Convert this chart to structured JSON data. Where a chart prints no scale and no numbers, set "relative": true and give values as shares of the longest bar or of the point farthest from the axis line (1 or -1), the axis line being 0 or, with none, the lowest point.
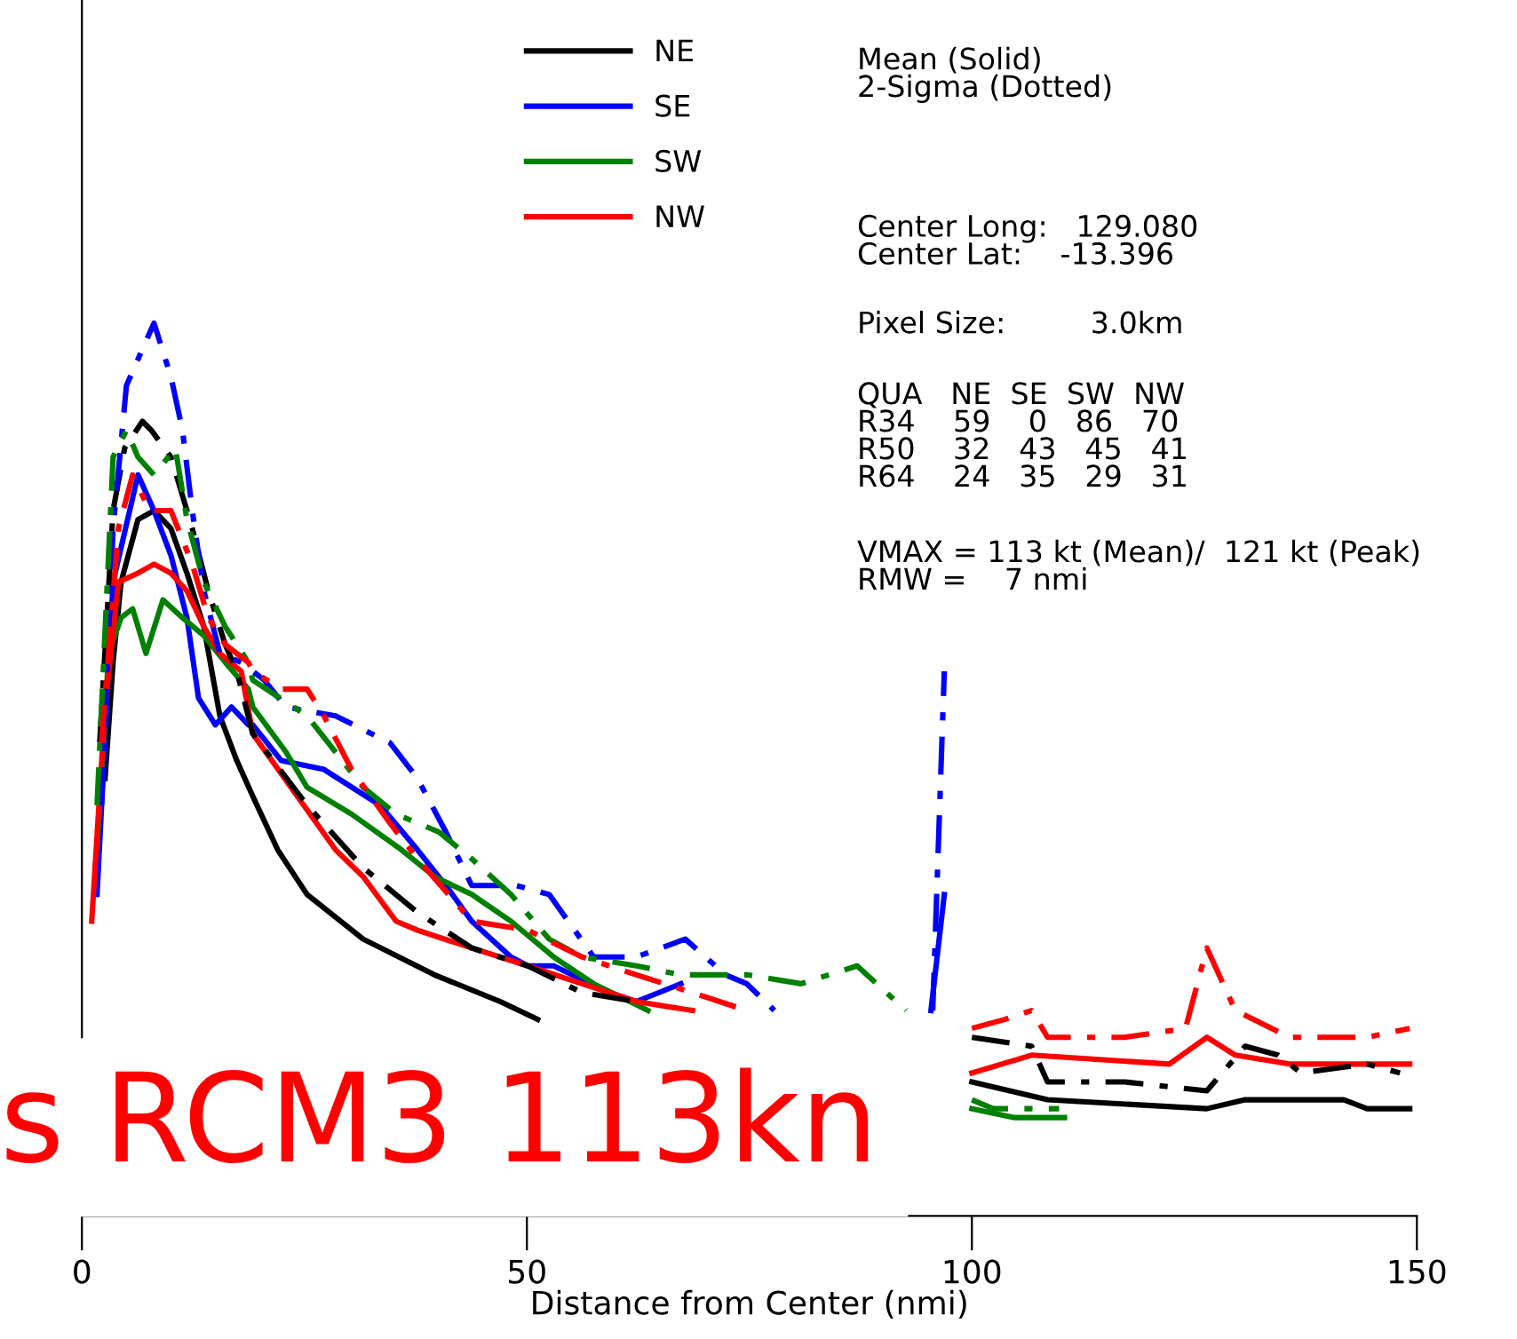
{
  "chart_data": {
    "type": "line",
    "relative": true,
    "xlabel": "Distance from Center (nmi)",
    "xlim": [
      0,
      150
    ],
    "xticks": [
      0,
      50,
      100,
      150
    ],
    "legend": "top",
    "grid": false,
    "series": [
      {
        "name": "NE",
        "color": "#000000",
        "line_style": "solid",
        "x": [
          2.6,
          3.5,
          4.4,
          6.3,
          8.1,
          10.0,
          11.8,
          13.7,
          15.5,
          17.4,
          19.2,
          22.0,
          25.3,
          31.6,
          39.6,
          47.0,
          51.2,
          75,
          100,
          108.5,
          126.4,
          130.7,
          141.8,
          144.4,
          149.2
        ],
        "values": [
          0.49,
          0.62,
          0.71,
          0.78,
          0.79,
          0.77,
          0.72,
          0.66,
          0.56,
          0.51,
          0.47,
          0.41,
          0.36,
          0.31,
          0.27,
          0.24,
          0.22,
          null,
          0.15,
          0.13,
          0.12,
          0.13,
          0.13,
          0.12,
          0.12
        ]
      },
      {
        "name": "SE",
        "color": "#0000ff",
        "line_style": "solid",
        "x": [
          1.7,
          3.5,
          6.3,
          8.1,
          10.0,
          11.8,
          13.1,
          15.0,
          16.8,
          18.7,
          19.2,
          22.4,
          27.2,
          33.5,
          37.7,
          40.9,
          43.8,
          48.2,
          50.1,
          53.0,
          59.3,
          62.3,
          67.3,
          80,
          95.4,
          96.9
        ],
        "values": [
          0.36,
          0.71,
          0.83,
          0.79,
          0.74,
          0.67,
          0.58,
          0.55,
          0.57,
          0.55,
          0.55,
          0.51,
          0.5,
          0.46,
          0.41,
          0.37,
          0.33,
          0.29,
          0.28,
          0.28,
          0.25,
          0.24,
          0.26,
          null,
          0.23,
          0.36
        ]
      },
      {
        "name": "SW",
        "color": "#008000",
        "line_style": "solid",
        "x": [
          1.7,
          3.0,
          4.4,
          5.7,
          7.2,
          9.1,
          11.3,
          13.7,
          16.1,
          18.7,
          19.2,
          22.9,
          25.3,
          30.3,
          35.9,
          39.6,
          43.8,
          48.2,
          53.0,
          57.5,
          63.6,
          80,
          100,
          104.8,
          110.4
        ],
        "values": [
          0.41,
          0.63,
          0.67,
          0.68,
          0.63,
          0.69,
          0.67,
          0.65,
          0.62,
          0.59,
          0.57,
          0.52,
          0.48,
          0.45,
          0.41,
          0.38,
          0.36,
          0.33,
          0.29,
          0.26,
          0.23,
          null,
          0.12,
          0.11,
          0.11
        ]
      },
      {
        "name": "NW",
        "color": "#ff0000",
        "line_style": "solid",
        "x": [
          1.1,
          2.6,
          4.1,
          6.3,
          8.1,
          10.0,
          11.8,
          13.7,
          15.5,
          17.9,
          19.2,
          24.2,
          28.5,
          31.6,
          35.3,
          37.7,
          43.8,
          50.1,
          56.2,
          62.3,
          68.6,
          85,
          100,
          106.7,
          122.2,
          126.4,
          129.6,
          135.7,
          149.2
        ],
        "values": [
          0.33,
          0.57,
          0.71,
          0.72,
          0.73,
          0.72,
          0.7,
          0.66,
          0.63,
          0.61,
          0.54,
          0.47,
          0.41,
          0.38,
          0.33,
          0.32,
          0.3,
          0.28,
          0.26,
          0.24,
          0.23,
          null,
          0.16,
          0.18,
          0.17,
          0.2,
          0.18,
          0.17,
          0.17
        ]
      },
      {
        "color": "#000000",
        "line_style": "dotted",
        "x": [
          2.0,
          3.5,
          4.8,
          6.8,
          7.8,
          10.0,
          12.4,
          14.2,
          16.1,
          17.4,
          19.2,
          25.3,
          31.6,
          37.7,
          43.8,
          50.1,
          56.2,
          62.3,
          80,
          100,
          106.7,
          108.5,
          117.2,
          126.4,
          130.7,
          134.4,
          137.0,
          144.4,
          148.1
        ],
        "values": [
          0.53,
          0.79,
          0.86,
          0.89,
          0.88,
          0.85,
          0.77,
          0.7,
          0.64,
          0.61,
          0.54,
          0.46,
          0.39,
          0.34,
          0.3,
          0.28,
          0.25,
          0.24,
          null,
          0.2,
          0.19,
          0.15,
          0.15,
          0.14,
          0.19,
          0.18,
          0.16,
          0.17,
          0.16
        ]
      },
      {
        "color": "#0000ff",
        "line_style": "dotted",
        "x": [
          2.2,
          3.5,
          5.0,
          7.2,
          8.1,
          10.0,
          11.3,
          12.4,
          13.7,
          15.5,
          17.9,
          20.5,
          22.9,
          28.5,
          34.6,
          37.7,
          40.9,
          43.8,
          48.8,
          52.5,
          57.5,
          62.3,
          67.8,
          72.3,
          74.7,
          77.8,
          86,
          95.6,
          96.9
        ],
        "values": [
          0.46,
          0.77,
          0.93,
          0.98,
          1.0,
          0.94,
          0.88,
          0.79,
          0.7,
          0.63,
          0.62,
          0.6,
          0.57,
          0.56,
          0.53,
          0.49,
          0.43,
          0.37,
          0.37,
          0.36,
          0.29,
          0.29,
          0.31,
          0.27,
          0.26,
          0.23,
          null,
          0.23,
          0.61
        ]
      },
      {
        "color": "#008000",
        "line_style": "dotted",
        "x": [
          1.7,
          3.5,
          5.0,
          6.3,
          8.1,
          10.5,
          11.8,
          13.7,
          16.1,
          18.7,
          19.2,
          25.3,
          31.6,
          35.3,
          40.1,
          43.8,
          48.2,
          52.5,
          56.2,
          62.3,
          67.3,
          74.7,
          80.8,
          87.1,
          92.6,
          96,
          100,
          102.4,
          109.8
        ],
        "values": [
          0.46,
          0.85,
          0.88,
          0.85,
          0.83,
          0.86,
          0.78,
          0.71,
          0.66,
          0.62,
          0.6,
          0.56,
          0.48,
          0.45,
          0.43,
          0.4,
          0.36,
          0.31,
          0.29,
          0.28,
          0.27,
          0.27,
          0.26,
          0.28,
          0.23,
          null,
          0.13,
          0.12,
          0.12
        ]
      },
      {
        "color": "#ff0000",
        "line_style": "dotted",
        "x": [
          2.2,
          4.1,
          5.7,
          7.6,
          10.0,
          12.4,
          14.2,
          16.1,
          18.7,
          19.2,
          22.4,
          25.3,
          27.2,
          30.3,
          34.6,
          37.7,
          43.8,
          50.1,
          56.2,
          62.3,
          68.6,
          74.7,
          88,
          100,
          103.7,
          106.7,
          108.5,
          117.2,
          124.0,
          126.4,
          129.6,
          135.7,
          141.8,
          144.4,
          149.2
        ],
        "values": [
          0.53,
          0.77,
          0.83,
          0.79,
          0.79,
          0.73,
          0.67,
          0.64,
          0.62,
          0.61,
          0.59,
          0.59,
          0.56,
          0.5,
          0.44,
          0.4,
          0.33,
          0.32,
          0.29,
          0.27,
          0.25,
          0.23,
          null,
          0.21,
          0.22,
          0.23,
          0.2,
          0.2,
          0.21,
          0.3,
          0.23,
          0.2,
          0.2,
          0.2,
          0.21
        ]
      }
    ],
    "annotations": [
      "Mean (Solid)\n2-Sigma (Dotted)",
      "Center Long:   129.080\nCenter Lat:    -13.396",
      "Pixel Size:         3.0km",
      "QUA   NE  SE  SW  NW\nR34    59    0   86   70\nR50    32   43   45   41\nR64    24   35   29   31",
      "VMAX = 113 kt (Mean)/  121 kt (Peak)\nRMW =    7 nmi",
      "s RCM3 113kn"
    ]
  }
}
